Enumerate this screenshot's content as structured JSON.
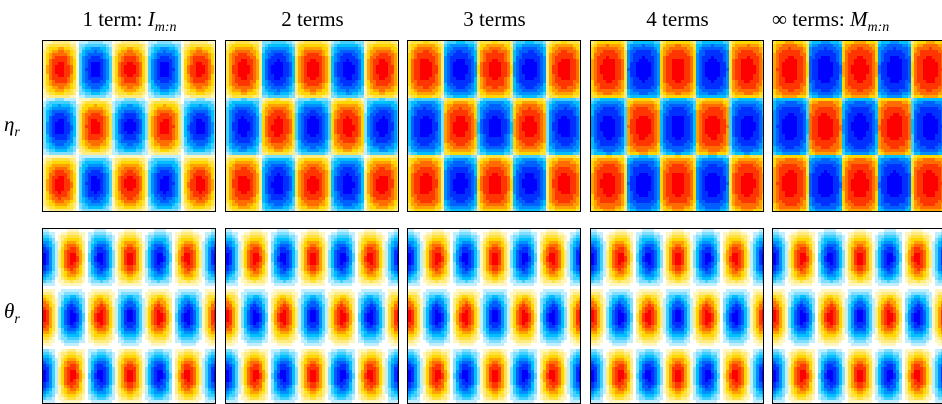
{
  "columns": [
    {
      "prefix": "1 term: ",
      "symbol": "I",
      "subscript": "m:n",
      "terms": 1
    },
    {
      "prefix": "2 terms",
      "symbol": "",
      "subscript": "",
      "terms": 2
    },
    {
      "prefix": "3 terms",
      "symbol": "",
      "subscript": "",
      "terms": 3
    },
    {
      "prefix": "4 terms",
      "symbol": "",
      "subscript": "",
      "terms": 4
    },
    {
      "prefix": "∞ terms: ",
      "symbol": "M",
      "subscript": "m:n",
      "terms": "infinity"
    }
  ],
  "rows": [
    {
      "symbol": "η",
      "subscript": "r",
      "field": "eta"
    },
    {
      "symbol": "θ",
      "subscript": "r",
      "field": "theta"
    }
  ],
  "colors": {
    "colormap": [
      "#0000ff",
      "#00bfff",
      "#ffffff",
      "#ffd700",
      "#ff0000"
    ],
    "frame": "#000000"
  },
  "chart_data": {
    "type": "heatmap",
    "panels": 10,
    "pattern": "cellular contour field, alternating positive (red) and negative (blue) cells",
    "eta_cells": {
      "rows": 3,
      "cols": 5
    },
    "theta_cells": {
      "rows": 3,
      "cols": 6
    }
  }
}
